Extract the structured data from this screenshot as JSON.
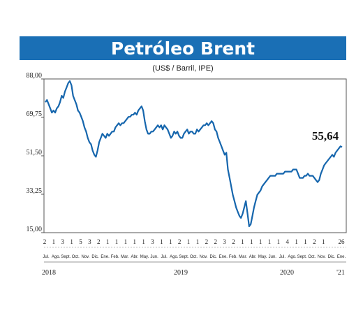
{
  "chart_data": {
    "type": "line",
    "title": "Petróleo Brent",
    "subtitle": "(US$ / Barril, IPE)",
    "ylim": [
      15,
      88
    ],
    "y_ticks": [
      "88,00",
      "69,75",
      "51,50",
      "33,25",
      "15,00"
    ],
    "y_tick_values": [
      88,
      69.75,
      51.5,
      33.25,
      15
    ],
    "last_value_label": "55,64",
    "colors": {
      "banner": "#1a6fb5",
      "line": "#1666ad",
      "frame": "#555555"
    },
    "grid": false,
    "x_day_labels": [
      "2",
      "1",
      "3",
      "1",
      "5",
      "3",
      "2",
      "1",
      "1",
      "1",
      "1",
      "1",
      "3",
      "1",
      "1",
      "2",
      "1",
      "1",
      "2",
      "2",
      "3",
      "2",
      "1",
      "1",
      "1",
      "1",
      "1",
      "4",
      "1",
      "1",
      "2",
      "1",
      "",
      "26"
    ],
    "x_month_labels": [
      "Jul.",
      "Ago.",
      "Sept.",
      "Oct.",
      "Nov.",
      "Dic.",
      "Ene.",
      "Feb.",
      "Mar.",
      "Abr.",
      "May.",
      "Jun.",
      "Jul.",
      "Ago.",
      "Sept.",
      "Oct.",
      "Nov.",
      "Dic.",
      "Ene.",
      "Feb.",
      "Mar.",
      "Abr.",
      "May.",
      "Jun.",
      "Jul.",
      "Ago.",
      "Sept.",
      "Oct.",
      "Nov.",
      "Dic.",
      "Ene."
    ],
    "x_year_labels": [
      "2018",
      "2019",
      "2020",
      "'21"
    ],
    "series": [
      {
        "values": [
          77,
          78,
          76,
          74,
          72,
          73,
          72,
          74,
          75,
          77,
          80,
          79,
          82,
          84,
          86,
          87,
          85,
          80,
          78,
          76,
          73,
          72,
          70,
          68,
          65,
          63,
          60,
          58,
          57,
          54,
          52,
          51,
          54,
          58,
          60,
          62,
          61,
          60,
          62,
          61,
          62,
          63,
          63,
          65,
          66,
          67,
          66,
          67,
          67,
          68,
          69,
          70,
          70,
          71,
          71,
          72,
          71,
          73,
          74,
          75,
          73,
          68,
          64,
          62,
          62,
          63,
          63,
          64,
          65,
          66,
          65,
          66,
          64,
          66,
          65,
          64,
          62,
          60,
          61,
          63,
          62,
          63,
          61,
          60,
          60,
          62,
          63,
          64,
          62,
          63,
          63,
          62,
          62,
          64,
          63,
          64,
          65,
          66,
          66,
          67,
          66,
          67,
          68,
          67,
          64,
          63,
          60,
          58,
          56,
          54,
          52,
          53,
          45,
          41,
          37,
          33,
          30,
          27,
          25,
          23,
          22,
          24,
          27,
          30,
          24,
          18,
          19,
          23,
          27,
          30,
          33,
          34,
          35,
          37,
          38,
          39,
          40,
          41,
          42,
          42,
          42,
          42,
          43,
          43,
          43,
          43,
          43,
          44,
          44,
          44,
          44,
          44,
          45,
          45,
          45,
          43,
          41,
          41,
          41,
          42,
          42,
          43,
          42,
          42,
          42,
          41,
          40,
          39,
          40,
          43,
          45,
          47,
          48,
          49,
          50,
          51,
          52,
          51,
          53,
          54,
          55,
          56,
          55.64
        ]
      }
    ]
  }
}
